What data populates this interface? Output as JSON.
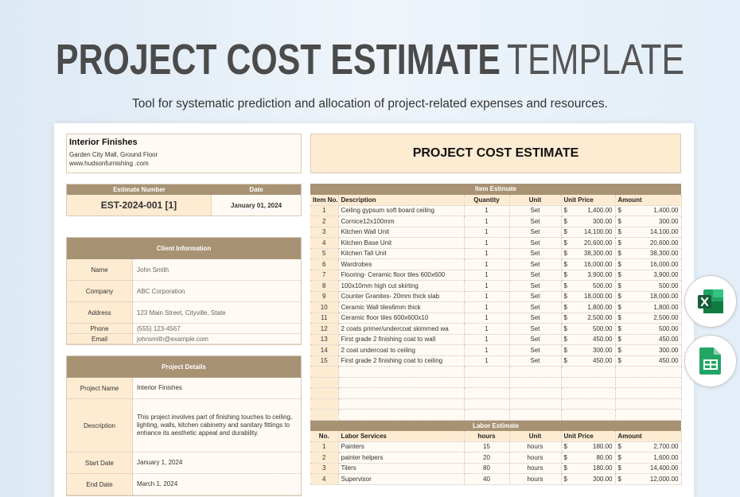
{
  "banner": {
    "title_bold": "PROJECT COST ESTIMATE",
    "title_light": "TEMPLATE",
    "subtitle": "Tool for systematic prediction and allocation of project-related expenses and resources."
  },
  "company": {
    "name": "Interior Finishes",
    "address": "Garden City Mall, Ground Floor",
    "website": "www.hudsonfurnishing .com"
  },
  "sheet_title": "PROJECT COST ESTIMATE",
  "estimate": {
    "number_label": "Estimate Number",
    "date_label": "Date",
    "number": "EST-2024-001 [1]",
    "date": "January 01, 2024"
  },
  "client": {
    "header": "Client Information",
    "rows": [
      {
        "label": "Name",
        "value": "John Smith"
      },
      {
        "label": "Company",
        "value": "ABC Corporation"
      },
      {
        "label": "Address",
        "value": "123 Main Street, Cityville, State"
      },
      {
        "label": "Phone",
        "value": "(555) 123-4567"
      },
      {
        "label": "Email",
        "value": "johnsmith@example.com"
      }
    ]
  },
  "project": {
    "header": "Project Details",
    "rows": [
      {
        "label": "Project Name",
        "value": "Interior Finishes"
      },
      {
        "label": "Description",
        "value": "This project involves part of finishing touches to ceiling, lighting, walls, kitchen cabinetry and sanitary fittings to enhance its aesthetic appeal and durability."
      },
      {
        "label": "Start Date",
        "value": "January 1, 2024"
      },
      {
        "label": "End Date",
        "value": "March 1, 2024"
      }
    ]
  },
  "items": {
    "header": "Item Estimate",
    "columns": [
      "Item No.",
      "Description",
      "Quantity",
      "Unit",
      "Unit Price",
      "Amount"
    ],
    "currency": "$",
    "rows": [
      [
        "1",
        "Ceiling gypsum soft board ceiling",
        "1",
        "Set",
        "1,400.00",
        "1,400.00"
      ],
      [
        "2",
        "Cornice12x100mm",
        "1",
        "Set",
        "300.00",
        "300.00"
      ],
      [
        "3",
        "Kitchen Wall Unit",
        "1",
        "Set",
        "14,100.00",
        "14,100.00"
      ],
      [
        "4",
        "Kitchen Base Unit",
        "1",
        "Set",
        "20,600.00",
        "20,600.00"
      ],
      [
        "5",
        "Kitchen Tall Unit",
        "1",
        "Set",
        "38,300.00",
        "38,300.00"
      ],
      [
        "6",
        "Wardrobes",
        "1",
        "Set",
        "16,000.00",
        "16,000.00"
      ],
      [
        "7",
        "Flooring- Ceramic floor tiles 600x600",
        "1",
        "Set",
        "3,900.00",
        "3,900.00"
      ],
      [
        "8",
        "100x10mm high cut skirting",
        "1",
        "Set",
        "500.00",
        "500.00"
      ],
      [
        "9",
        "Counter Granites- 20mm thick slab",
        "1",
        "Set",
        "18,000.00",
        "18,000.00"
      ],
      [
        "10",
        "Ceramic Wall tiles6mm thick",
        "1",
        "Set",
        "1,800.00",
        "1,800.00"
      ],
      [
        "11",
        "Ceramic floor tiles 600x600x10",
        "1",
        "Set",
        "2,500.00",
        "2,500.00"
      ],
      [
        "12",
        "2 coats primer/undercoat skimmed wa",
        "1",
        "Set",
        "500.00",
        "500.00"
      ],
      [
        "13",
        "First grade 2 finishing coat to wall",
        "1",
        "Set",
        "450.00",
        "450.00"
      ],
      [
        "14",
        "2 coat undercoat to ceiling",
        "1",
        "Set",
        "300.00",
        "300.00"
      ],
      [
        "15",
        "First grade 2 finishing coat to ceiling",
        "1",
        "Set",
        "450.00",
        "450.00"
      ]
    ]
  },
  "labor": {
    "header": "Labor Estimate",
    "columns": [
      "No.",
      "Labor Services",
      "hours",
      "Unit",
      "Unit Price",
      "Amount"
    ],
    "currency": "$",
    "rows": [
      [
        "1",
        "Painters",
        "15",
        "hours",
        "180.00",
        "2,700.00"
      ],
      [
        "2",
        "painter helpers",
        "20",
        "hours",
        "80.00",
        "1,600.00"
      ],
      [
        "3",
        "Tilers",
        "80",
        "hours",
        "180.00",
        "14,400.00"
      ],
      [
        "4",
        "Supervisor",
        "40",
        "hours",
        "300.00",
        "12,000.00"
      ]
    ]
  },
  "badges": [
    {
      "icon": "excel-icon",
      "color": "#107c41"
    },
    {
      "icon": "google-sheets-icon",
      "color": "#23a566"
    }
  ]
}
